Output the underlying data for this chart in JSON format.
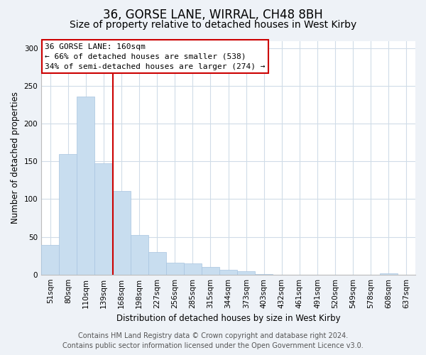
{
  "title": "36, GORSE LANE, WIRRAL, CH48 8BH",
  "subtitle": "Size of property relative to detached houses in West Kirby",
  "xlabel": "Distribution of detached houses by size in West Kirby",
  "ylabel": "Number of detached properties",
  "categories": [
    "51sqm",
    "80sqm",
    "110sqm",
    "139sqm",
    "168sqm",
    "198sqm",
    "227sqm",
    "256sqm",
    "285sqm",
    "315sqm",
    "344sqm",
    "373sqm",
    "403sqm",
    "432sqm",
    "461sqm",
    "491sqm",
    "520sqm",
    "549sqm",
    "578sqm",
    "608sqm",
    "637sqm"
  ],
  "values": [
    39,
    160,
    236,
    148,
    111,
    52,
    30,
    16,
    15,
    10,
    6,
    4,
    1,
    0,
    0,
    0,
    0,
    0,
    0,
    2,
    0
  ],
  "bar_color": "#c8ddef",
  "bar_edge_color": "#a8c4e0",
  "vline_color": "#cc0000",
  "vline_index": 4,
  "box_text_line1": "36 GORSE LANE: 160sqm",
  "box_text_line2": "← 66% of detached houses are smaller (538)",
  "box_text_line3": "34% of semi-detached houses are larger (274) →",
  "box_color": "#cc0000",
  "ylim": [
    0,
    310
  ],
  "yticks": [
    0,
    50,
    100,
    150,
    200,
    250,
    300
  ],
  "footer_line1": "Contains HM Land Registry data © Crown copyright and database right 2024.",
  "footer_line2": "Contains public sector information licensed under the Open Government Licence v3.0.",
  "bg_color": "#eef2f7",
  "plot_bg_color": "#ffffff",
  "grid_color": "#d0dce8",
  "title_fontsize": 12,
  "subtitle_fontsize": 10,
  "axis_label_fontsize": 8.5,
  "tick_fontsize": 7.5,
  "footer_fontsize": 7
}
